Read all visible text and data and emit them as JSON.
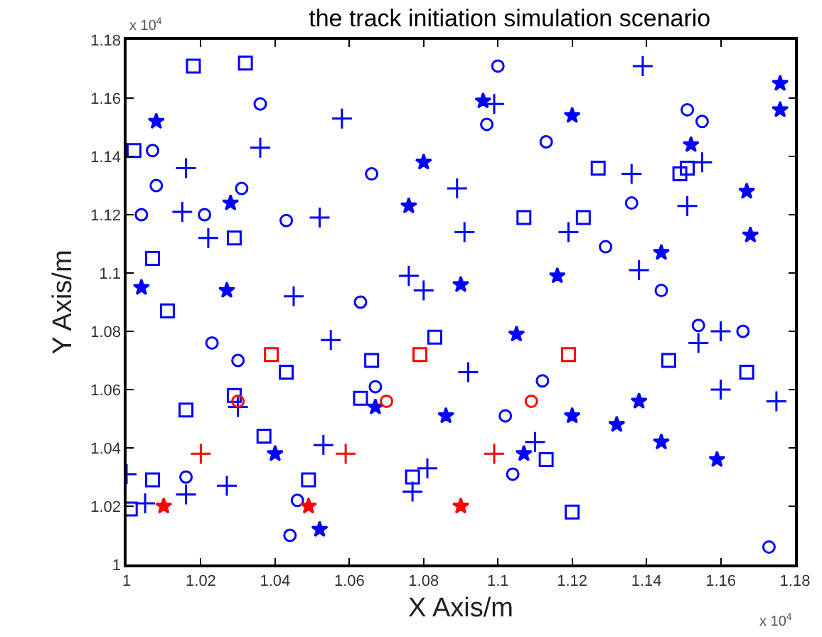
{
  "chart_data": {
    "type": "scatter",
    "title": "the track initiation simulation scenario",
    "xlabel": "X Axis/m",
    "ylabel": "Y Axis/m",
    "annotations": [
      "x 10$^{4}$",
      "x 10$^{4}$"
    ],
    "xlim": [
      1,
      1.18
    ],
    "ylim": [
      1,
      1.18
    ],
    "xticks": [
      1,
      1.02,
      1.04,
      1.06,
      1.08,
      1.1,
      1.12,
      1.14,
      1.16,
      1.18
    ],
    "yticks": [
      1,
      1.02,
      1.04,
      1.06,
      1.08,
      1.1,
      1.12,
      1.14,
      1.16,
      1.18
    ],
    "grid": false,
    "series": [
      {
        "color": "#0000ff",
        "marker": "square",
        "x": [
          1.018,
          1.032,
          1.002,
          1.029,
          1.007,
          1.011,
          1.127,
          1.151,
          1.149,
          1.107,
          1.123,
          1.083,
          1.066,
          1.043,
          1.029,
          1.063,
          1.016,
          1.037,
          1.007,
          1.049,
          1.077,
          1.001,
          1.146,
          1.167,
          1.113,
          1.12
        ],
        "values": [
          1.171,
          1.172,
          1.142,
          1.112,
          1.105,
          1.087,
          1.136,
          1.136,
          1.134,
          1.119,
          1.119,
          1.078,
          1.07,
          1.066,
          1.058,
          1.057,
          1.053,
          1.044,
          1.029,
          1.029,
          1.03,
          1.019,
          1.07,
          1.066,
          1.036,
          1.018
        ]
      },
      {
        "color": "#0000ff",
        "marker": "circle",
        "x": [
          1.036,
          1.007,
          1.066,
          1.008,
          1.031,
          1.004,
          1.021,
          1.043,
          1.063,
          1.1,
          1.097,
          1.151,
          1.155,
          1.113,
          1.136,
          1.129,
          1.144,
          1.023,
          1.03,
          1.067,
          1.016,
          1.046,
          1.044,
          1.112,
          1.102,
          1.104,
          1.154,
          1.166,
          1.173
        ],
        "values": [
          1.158,
          1.142,
          1.134,
          1.13,
          1.129,
          1.12,
          1.12,
          1.118,
          1.09,
          1.171,
          1.151,
          1.156,
          1.152,
          1.145,
          1.124,
          1.109,
          1.094,
          1.076,
          1.07,
          1.061,
          1.03,
          1.022,
          1.01,
          1.063,
          1.051,
          1.031,
          1.082,
          1.08,
          1.006
        ]
      },
      {
        "color": "#0000ff",
        "marker": "cross",
        "x": [
          1.058,
          1.036,
          1.016,
          1.089,
          1.015,
          1.052,
          1.091,
          1.022,
          1.076,
          1.08,
          1.045,
          1.139,
          1.099,
          1.155,
          1.136,
          1.151,
          1.119,
          1.138,
          1.055,
          1.092,
          1.03,
          1.053,
          1.0,
          1.081,
          1.077,
          1.027,
          1.016,
          1.005,
          1.11,
          1.154,
          1.16,
          1.16,
          1.175
        ],
        "values": [
          1.153,
          1.143,
          1.136,
          1.129,
          1.121,
          1.119,
          1.114,
          1.112,
          1.099,
          1.094,
          1.092,
          1.171,
          1.158,
          1.138,
          1.134,
          1.123,
          1.114,
          1.101,
          1.077,
          1.066,
          1.054,
          1.041,
          1.031,
          1.033,
          1.025,
          1.027,
          1.024,
          1.021,
          1.042,
          1.076,
          1.08,
          1.06,
          1.056
        ]
      },
      {
        "color": "#0000ff",
        "marker": "star",
        "x": [
          1.008,
          1.08,
          1.028,
          1.076,
          1.004,
          1.027,
          1.09,
          1.096,
          1.176,
          1.176,
          1.12,
          1.152,
          1.167,
          1.168,
          1.144,
          1.116,
          1.067,
          1.086,
          1.04,
          1.052,
          1.105,
          1.12,
          1.107,
          1.132,
          1.138,
          1.144,
          1.159
        ],
        "values": [
          1.152,
          1.138,
          1.124,
          1.123,
          1.095,
          1.094,
          1.096,
          1.159,
          1.165,
          1.156,
          1.154,
          1.144,
          1.128,
          1.113,
          1.107,
          1.099,
          1.054,
          1.051,
          1.038,
          1.012,
          1.079,
          1.051,
          1.038,
          1.048,
          1.056,
          1.042,
          1.036
        ]
      },
      {
        "color": "#ff0000",
        "marker": "square",
        "x": [
          1.039,
          1.079,
          1.119
        ],
        "values": [
          1.072,
          1.072,
          1.072
        ]
      },
      {
        "color": "#ff0000",
        "marker": "circle",
        "x": [
          1.03,
          1.07,
          1.109
        ],
        "values": [
          1.056,
          1.056,
          1.056
        ]
      },
      {
        "color": "#ff0000",
        "marker": "cross",
        "x": [
          1.02,
          1.059,
          1.099
        ],
        "values": [
          1.038,
          1.038,
          1.038
        ]
      },
      {
        "color": "#ff0000",
        "marker": "star",
        "x": [
          1.01,
          1.049,
          1.09
        ],
        "values": [
          1.02,
          1.02,
          1.02
        ]
      }
    ]
  }
}
